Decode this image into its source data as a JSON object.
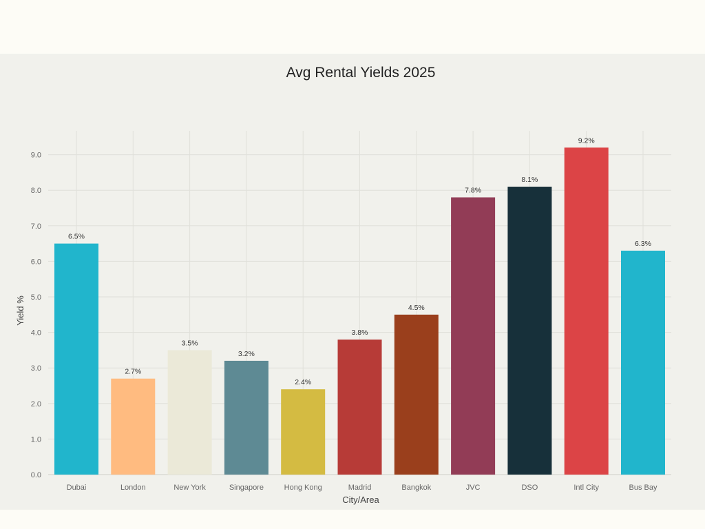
{
  "chart_data": {
    "type": "bar",
    "title": "Avg Rental Yields 2025",
    "xlabel": "City/Area",
    "ylabel": "Yield %",
    "ylim": [
      0,
      9.5
    ],
    "yticks": [
      "0.0",
      "1.0",
      "2.0",
      "3.0",
      "4.0",
      "5.0",
      "6.0",
      "7.0",
      "8.0",
      "9.0"
    ],
    "grid": true,
    "categories": [
      "Dubai",
      "London",
      "New York",
      "Singapore",
      "Hong Kong",
      "Madrid",
      "Bangkok",
      "JVC",
      "DSO",
      "Intl City",
      "Bus Bay"
    ],
    "values": [
      6.5,
      2.7,
      3.5,
      3.2,
      2.4,
      3.8,
      4.5,
      7.8,
      8.1,
      9.2,
      6.3
    ],
    "data_labels": [
      "6.5%",
      "2.7%",
      "3.5%",
      "3.2%",
      "2.4%",
      "3.8%",
      "4.5%",
      "7.8%",
      "8.1%",
      "9.2%",
      "6.3%"
    ],
    "colors": [
      "#21b5cc",
      "#ffbb80",
      "#ebe9d8",
      "#5e8a94",
      "#d4bb42",
      "#b73b37",
      "#9a3f1c",
      "#923c56",
      "#17303a",
      "#dc4446",
      "#21b5cc"
    ]
  }
}
